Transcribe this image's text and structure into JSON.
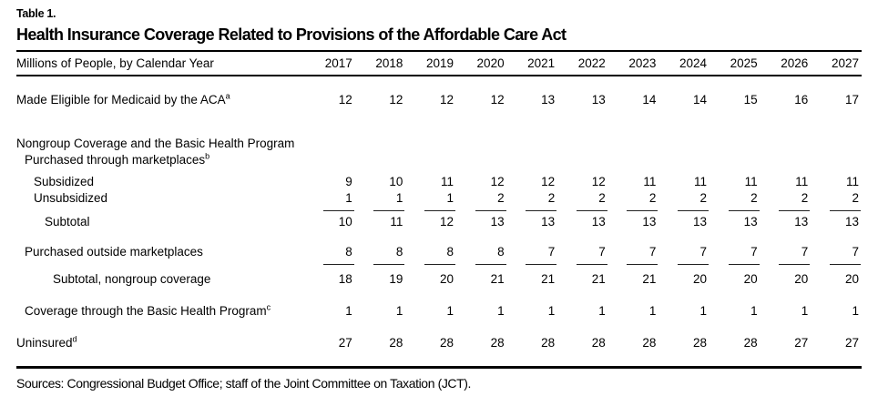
{
  "header": {
    "table_label": "Table 1.",
    "title": "Health Insurance Coverage Related to Provisions of the Affordable Care Act"
  },
  "table": {
    "row_header": "Millions of People, by Calendar Year",
    "years": [
      "2017",
      "2018",
      "2019",
      "2020",
      "2021",
      "2022",
      "2023",
      "2024",
      "2025",
      "2026",
      "2027"
    ],
    "rows": [
      {
        "label": "Made Eligible for Medicaid by the ACA",
        "sup": "a",
        "indent": 0,
        "spacing_before": "large",
        "values": [
          12,
          12,
          12,
          12,
          13,
          13,
          14,
          14,
          15,
          16,
          17
        ]
      },
      {
        "label": "Nongroup Coverage and the Basic Health Program",
        "indent": 0,
        "spacing_before": "section",
        "values": null
      },
      {
        "label": "Purchased through marketplaces",
        "sup": "b",
        "indent": 1,
        "spacing_before": "none",
        "values": null
      },
      {
        "label": "Subsidized",
        "indent": 2,
        "spacing_before": "small",
        "values": [
          9,
          10,
          11,
          12,
          12,
          12,
          11,
          11,
          11,
          11,
          11
        ]
      },
      {
        "label": "Unsubsidized",
        "indent": 2,
        "spacing_before": "none",
        "rule_below": true,
        "values": [
          1,
          1,
          1,
          2,
          2,
          2,
          2,
          2,
          2,
          2,
          2
        ]
      },
      {
        "label": "Subtotal",
        "indent": 3,
        "spacing_before": "none",
        "values": [
          10,
          11,
          12,
          13,
          13,
          13,
          13,
          13,
          13,
          13,
          13
        ]
      },
      {
        "label": "Purchased outside marketplaces",
        "indent": 1,
        "spacing_before": "medium",
        "rule_below": true,
        "values": [
          8,
          8,
          8,
          8,
          7,
          7,
          7,
          7,
          7,
          7,
          7
        ]
      },
      {
        "label": "Subtotal, nongroup coverage",
        "indent": 4,
        "spacing_before": "tiny",
        "values": [
          18,
          19,
          20,
          21,
          21,
          21,
          21,
          20,
          20,
          20,
          20
        ]
      },
      {
        "label": "Coverage through the Basic Health Program",
        "sup": "c",
        "indent": 1,
        "spacing_before": "large",
        "values": [
          1,
          1,
          1,
          1,
          1,
          1,
          1,
          1,
          1,
          1,
          1
        ]
      },
      {
        "label": "Uninsured",
        "sup": "d",
        "indent": 0,
        "spacing_before": "large",
        "values": [
          27,
          28,
          28,
          28,
          28,
          28,
          28,
          28,
          28,
          27,
          27
        ]
      }
    ]
  },
  "footer": {
    "sources": "Sources: Congressional Budget Office; staff of the Joint Committee on Taxation (JCT)."
  }
}
